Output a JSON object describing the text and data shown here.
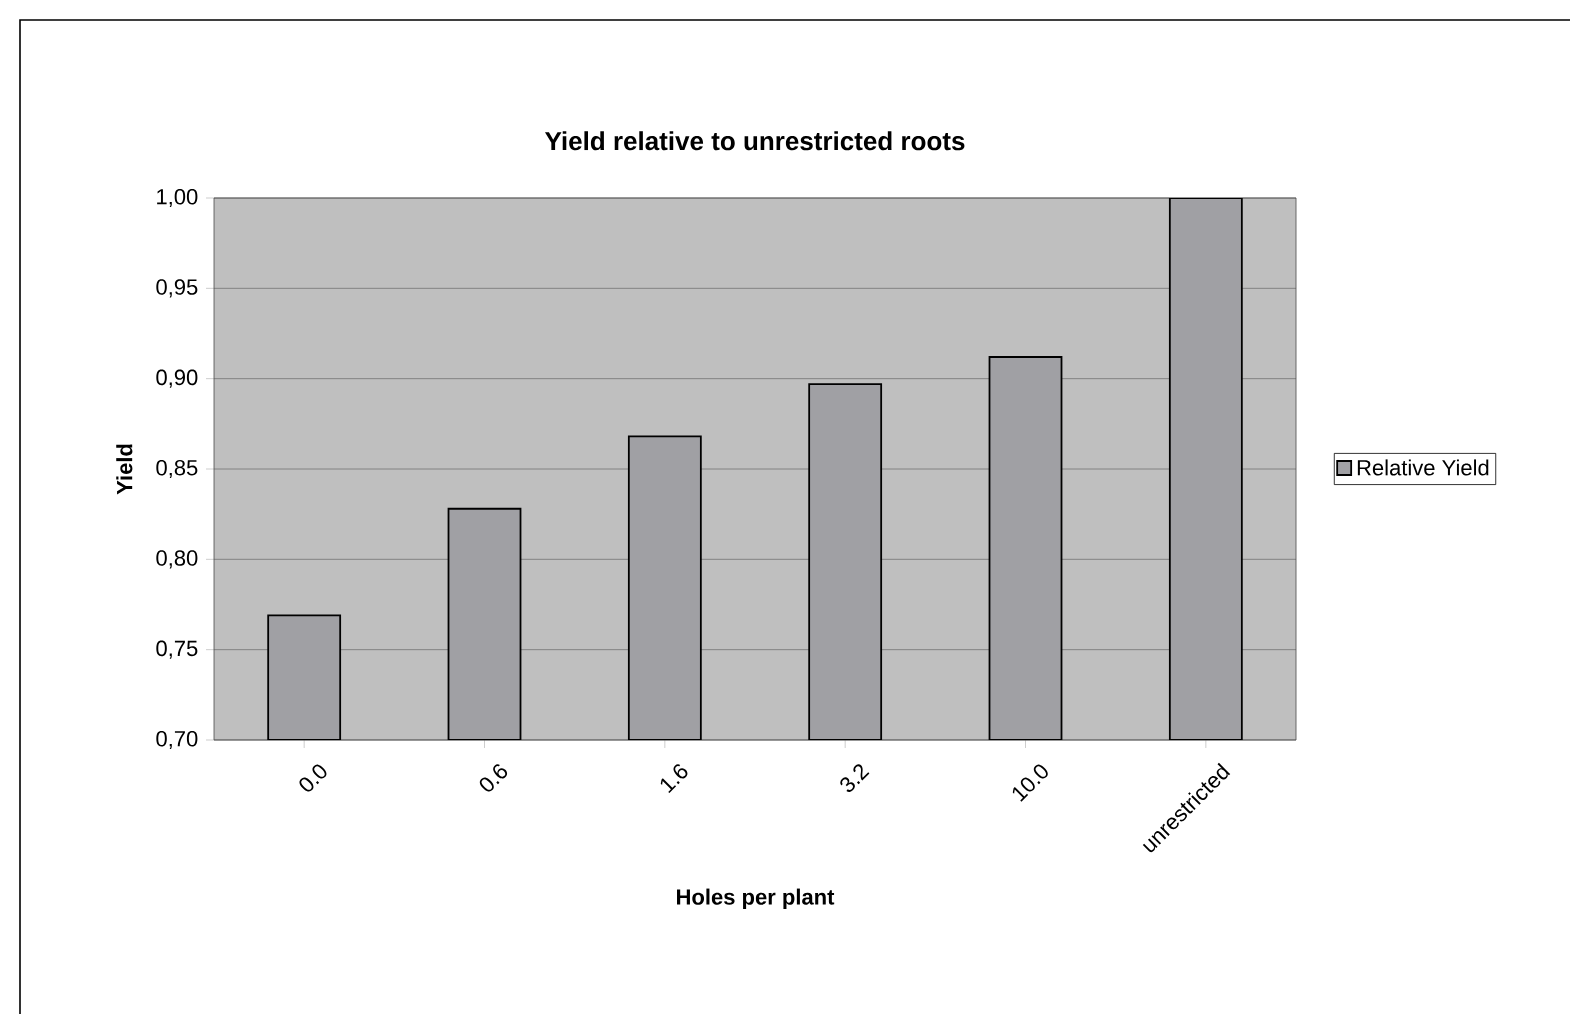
{
  "chart_data": {
    "type": "bar",
    "title": "Yield relative to unrestricted roots",
    "xlabel": "Holes per plant",
    "ylabel": "Yield",
    "categories": [
      "0.0",
      "0.6",
      "1.6",
      "3.2",
      "10.0",
      "unrestricted"
    ],
    "series": [
      {
        "name": "Relative Yield",
        "color": "#a0a0a4",
        "values": [
          0.769,
          0.828,
          0.868,
          0.897,
          0.912,
          1.0
        ]
      }
    ],
    "ylim": [
      0.7,
      1.0
    ],
    "yticks": [
      {
        "value": 0.7,
        "label": "0,70"
      },
      {
        "value": 0.75,
        "label": "0,75"
      },
      {
        "value": 0.8,
        "label": "0,80"
      },
      {
        "value": 0.85,
        "label": "0,85"
      },
      {
        "value": 0.9,
        "label": "0,90"
      },
      {
        "value": 0.95,
        "label": "0,95"
      },
      {
        "value": 1.0,
        "label": "1,00"
      }
    ],
    "grid": "y",
    "legend": "right"
  }
}
